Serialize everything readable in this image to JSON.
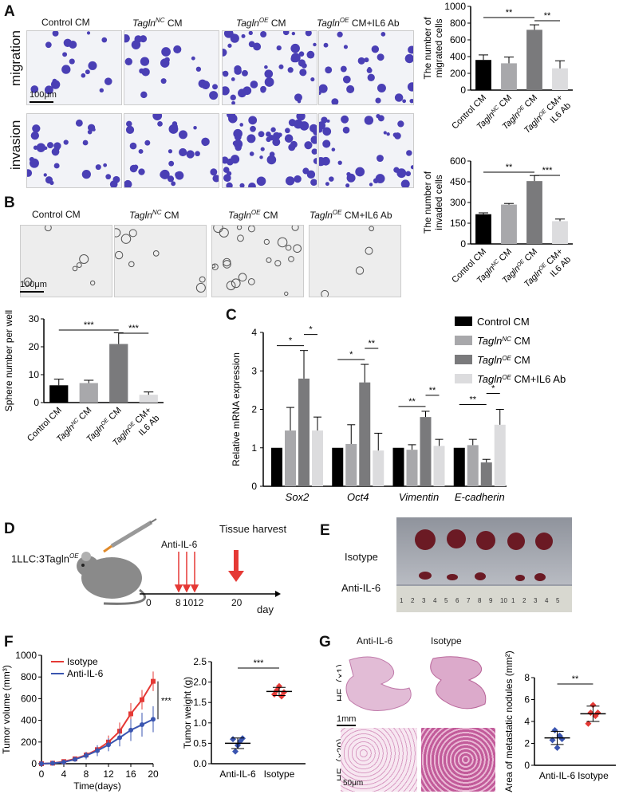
{
  "panels": {
    "A": "A",
    "B": "B",
    "C": "C",
    "D": "D",
    "E": "E",
    "F": "F",
    "G": "G"
  },
  "groups": {
    "control": "Control CM",
    "nc": "TaglnNC CM",
    "oe": "TaglnOE CM",
    "oe_ab": "TaglnOE CM+IL6 Ab",
    "nc_main": "Tagln",
    "nc_sup": "NC",
    "cm": " CM",
    "oe_sup": "OE",
    "cm_ab": " CM+IL6 Ab",
    "cm_plus": " CM+",
    "il6ab": "IL6 Ab"
  },
  "rows": {
    "migration": "migration",
    "invasion": "invasion"
  },
  "scalebars": {
    "a": "100μm",
    "b": "100μm",
    "g_lo": "1mm",
    "g_hi": "50μm"
  },
  "colors": {
    "control": "#000000",
    "nc": "#a8a8ab",
    "oe": "#7a7a7c",
    "oe_ab": "#dcdcde",
    "isotype": "#e53935",
    "anti": "#3a55b0",
    "cell_stain": "#4a3fb5",
    "he": "#c0559a"
  },
  "d": {
    "mouse_label": "1LLC:3Tagln",
    "mouse_sup": "OE",
    "anti": "Anti-IL-6",
    "harvest": "Tissue harvest",
    "day": "day",
    "ticks": [
      "0",
      "8",
      "10",
      "12",
      "20"
    ]
  },
  "e": {
    "isotype": "Isotype",
    "anti": "Anti-IL-6",
    "ruler": [
      "1",
      "2",
      "3",
      "4",
      "5",
      "6",
      "7",
      "8",
      "9",
      "10",
      "1",
      "2",
      "3",
      "4",
      "5"
    ]
  },
  "g": {
    "anti": "Anti-IL-6",
    "isotype": "Isotype",
    "he1": "HE（×1）",
    "he20": "HE（×20）"
  },
  "chart_data": [
    {
      "id": "A-migration",
      "type": "bar",
      "ylabel": "The number of migrated cells",
      "ylim": [
        0,
        1000
      ],
      "yticks": [
        0,
        200,
        400,
        600,
        800,
        1000
      ],
      "values": [
        360,
        320,
        720,
        260
      ],
      "errors": [
        60,
        75,
        60,
        90
      ],
      "sig": [
        {
          "a": 2,
          "b": 0,
          "t": "**"
        },
        {
          "a": 2,
          "b": 3,
          "t": "**"
        }
      ]
    },
    {
      "id": "A-invasion",
      "type": "bar",
      "ylabel": "The number of invaded cells",
      "ylim": [
        0,
        600
      ],
      "yticks": [
        0,
        150,
        300,
        450,
        600
      ],
      "values": [
        215,
        285,
        455,
        165
      ],
      "errors": [
        10,
        8,
        40,
        15
      ],
      "sig": [
        {
          "a": 2,
          "b": 0,
          "t": "**"
        },
        {
          "a": 2,
          "b": 3,
          "t": "***"
        }
      ]
    },
    {
      "id": "B-sphere",
      "type": "bar",
      "ylabel": "Sphere number per well",
      "ylim": [
        0,
        30
      ],
      "yticks": [
        0,
        10,
        20,
        30
      ],
      "values": [
        6.2,
        7.0,
        21.0,
        2.8
      ],
      "errors": [
        2.2,
        1.0,
        4.0,
        1.0
      ],
      "sig": [
        {
          "a": 2,
          "b": 0,
          "t": "***"
        },
        {
          "a": 2,
          "b": 3,
          "t": "***"
        }
      ]
    },
    {
      "id": "C-mrna",
      "type": "bar",
      "ylabel": "Relative mRNA expression",
      "ylim": [
        0,
        4
      ],
      "yticks": [
        0,
        1,
        2,
        3,
        4
      ],
      "categories": [
        "Sox2",
        "Oct4",
        "Vimentin",
        "E-cadherin"
      ],
      "series": [
        {
          "name": "Control CM",
          "values": [
            1,
            1,
            1,
            1
          ],
          "errors": [
            0,
            0,
            0,
            0
          ]
        },
        {
          "name": "TaglnNC CM",
          "values": [
            1.45,
            1.1,
            0.95,
            1.07
          ],
          "errors": [
            0.6,
            0.5,
            0.13,
            0.15
          ]
        },
        {
          "name": "TaglnOE CM",
          "values": [
            2.8,
            2.7,
            1.8,
            0.62
          ],
          "errors": [
            0.73,
            0.47,
            0.15,
            0.08
          ]
        },
        {
          "name": "TaglnOE CM+IL6 Ab",
          "values": [
            1.45,
            0.93,
            1.05,
            1.6
          ],
          "errors": [
            0.35,
            0.45,
            0.17,
            0.4
          ]
        }
      ],
      "sig": [
        "*",
        "*",
        "*",
        "**",
        "**",
        "**",
        "**",
        "*"
      ]
    },
    {
      "id": "F-volume",
      "type": "line",
      "ylabel": "Tumor volume (mm³)",
      "xlabel": "Time(days)",
      "ylim": [
        0,
        1000
      ],
      "yticks": [
        0,
        200,
        400,
        600,
        800,
        1000
      ],
      "xlim": [
        0,
        20
      ],
      "xticks": [
        0,
        4,
        8,
        12,
        16,
        20
      ],
      "sig": "***",
      "series": [
        {
          "name": "Isotype",
          "x": [
            0,
            2,
            4,
            6,
            8,
            10,
            12,
            14,
            16,
            18,
            20
          ],
          "y": [
            0,
            5,
            20,
            45,
            80,
            130,
            200,
            300,
            460,
            590,
            760
          ],
          "err": [
            0,
            5,
            10,
            15,
            25,
            40,
            60,
            80,
            100,
            90,
            90
          ]
        },
        {
          "name": "Anti-IL-6",
          "x": [
            0,
            2,
            4,
            6,
            8,
            10,
            12,
            14,
            16,
            18,
            20
          ],
          "y": [
            0,
            5,
            15,
            40,
            75,
            120,
            175,
            240,
            310,
            360,
            410
          ],
          "err": [
            0,
            5,
            10,
            20,
            35,
            50,
            60,
            80,
            100,
            110,
            120
          ]
        }
      ]
    },
    {
      "id": "F-weight",
      "type": "scatter",
      "ylabel": "Tumor weight (g)",
      "ylim": [
        0,
        2.5
      ],
      "yticks": [
        0,
        0.5,
        1.0,
        1.5,
        2.0,
        2.5
      ],
      "categories": [
        "Anti-IL-6",
        "Isotype"
      ],
      "sig": "***",
      "points": [
        [
          0.6,
          0.3,
          0.45,
          0.55,
          0.62
        ],
        [
          1.7,
          1.8,
          1.9,
          1.65,
          1.75
        ]
      ],
      "means": [
        0.5,
        1.77
      ],
      "sd": [
        0.13,
        0.1
      ]
    },
    {
      "id": "G-area",
      "type": "scatter",
      "ylabel": "Area of metastatic nodules (mm²)",
      "ylim": [
        0,
        8
      ],
      "yticks": [
        0,
        2,
        4,
        6,
        8
      ],
      "categories": [
        "Anti-IL-6",
        "Isotype"
      ],
      "sig": "**",
      "points": [
        [
          2.3,
          3.2,
          1.6,
          2.7,
          2.4
        ],
        [
          3.8,
          4.8,
          5.5,
          4.5,
          4.8
        ]
      ],
      "means": [
        2.5,
        4.7
      ],
      "sd": [
        0.6,
        0.7
      ]
    }
  ]
}
